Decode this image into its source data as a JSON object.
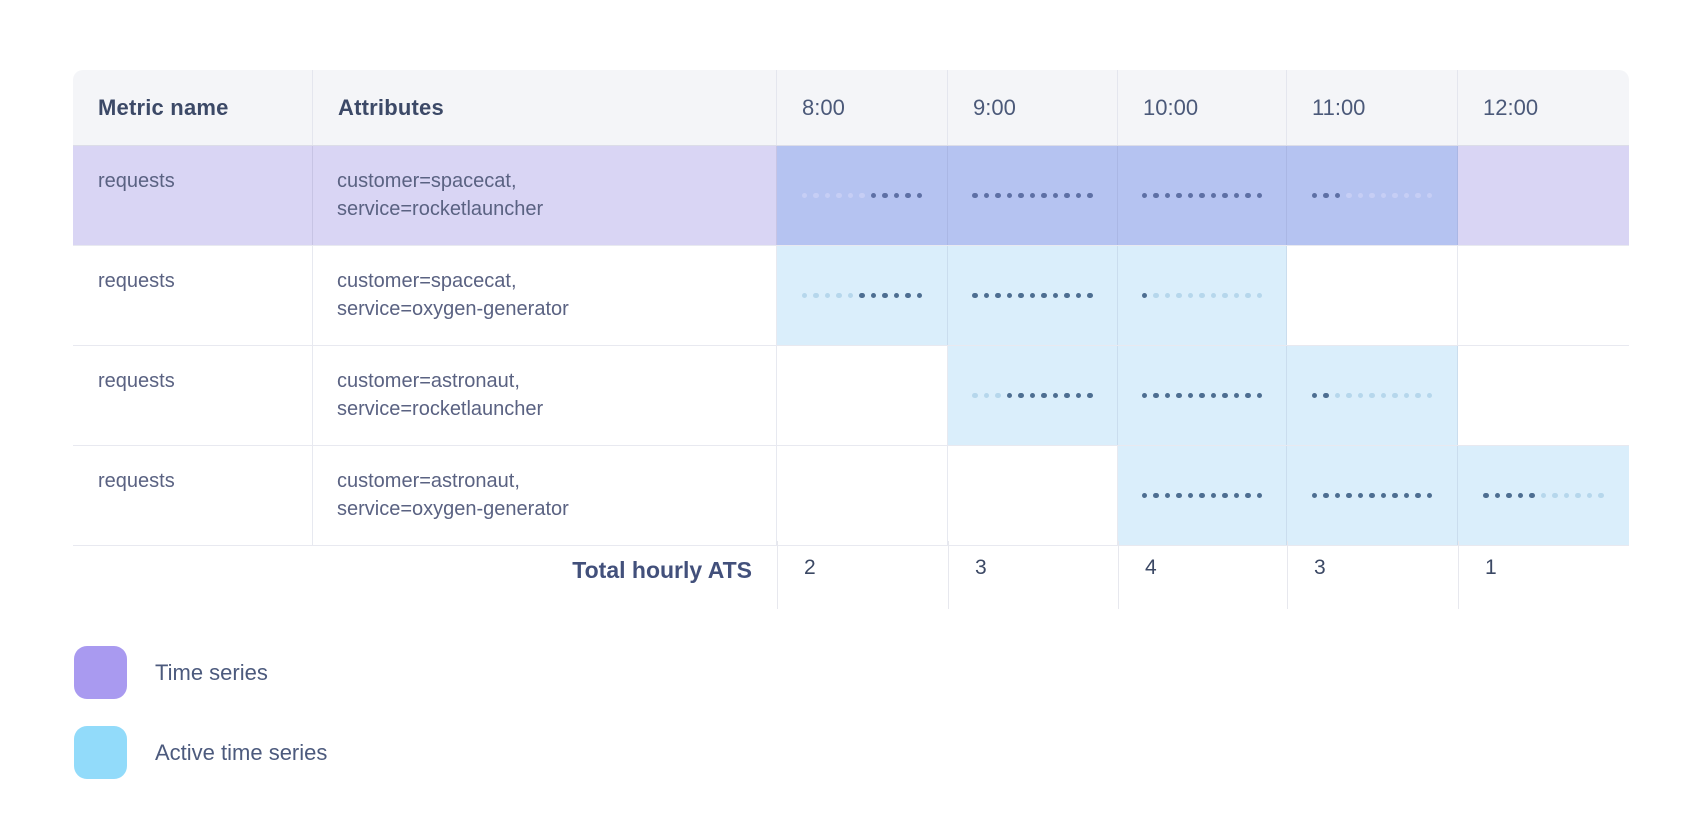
{
  "table": {
    "columns": [
      "Metric name",
      "Attributes",
      "8:00",
      "9:00",
      "10:00",
      "11:00",
      "12:00"
    ],
    "hours": [
      "8:00",
      "9:00",
      "10:00",
      "11:00",
      "12:00"
    ],
    "rows": [
      {
        "metric": "requests",
        "attributes": [
          "customer=spacecat,",
          "service=rocketlauncher"
        ],
        "highlighted": true,
        "cells": [
          {
            "hour": "8:00",
            "active": true,
            "dots": [
              0,
              0,
              0,
              0,
              0,
              0,
              1,
              1,
              1,
              1,
              1
            ]
          },
          {
            "hour": "9:00",
            "active": true,
            "dots": [
              1,
              1,
              1,
              1,
              1,
              1,
              1,
              1,
              1,
              1,
              1
            ]
          },
          {
            "hour": "10:00",
            "active": true,
            "dots": [
              1,
              1,
              1,
              1,
              1,
              1,
              1,
              1,
              1,
              1,
              1
            ]
          },
          {
            "hour": "11:00",
            "active": true,
            "dots": [
              1,
              1,
              1,
              0,
              0,
              0,
              0,
              0,
              0,
              0,
              0
            ]
          },
          {
            "hour": "12:00",
            "active": false,
            "dots": null
          }
        ]
      },
      {
        "metric": "requests",
        "attributes": [
          "customer=spacecat,",
          "service=oxygen-generator"
        ],
        "highlighted": false,
        "cells": [
          {
            "hour": "8:00",
            "active": true,
            "dots": [
              0,
              0,
              0,
              0,
              0,
              1,
              1,
              1,
              1,
              1,
              1
            ]
          },
          {
            "hour": "9:00",
            "active": true,
            "dots": [
              1,
              1,
              1,
              1,
              1,
              1,
              1,
              1,
              1,
              1,
              1
            ]
          },
          {
            "hour": "10:00",
            "active": true,
            "dots": [
              1,
              0,
              0,
              0,
              0,
              0,
              0,
              0,
              0,
              0,
              0
            ]
          },
          {
            "hour": "11:00",
            "active": false,
            "dots": null
          },
          {
            "hour": "12:00",
            "active": false,
            "dots": null
          }
        ]
      },
      {
        "metric": "requests",
        "attributes": [
          "customer=astronaut,",
          "service=rocketlauncher"
        ],
        "highlighted": false,
        "cells": [
          {
            "hour": "8:00",
            "active": false,
            "dots": null
          },
          {
            "hour": "9:00",
            "active": true,
            "dots": [
              0,
              0,
              0,
              1,
              1,
              1,
              1,
              1,
              1,
              1,
              1
            ]
          },
          {
            "hour": "10:00",
            "active": true,
            "dots": [
              1,
              1,
              1,
              1,
              1,
              1,
              1,
              1,
              1,
              1,
              1
            ]
          },
          {
            "hour": "11:00",
            "active": true,
            "dots": [
              1,
              1,
              0,
              0,
              0,
              0,
              0,
              0,
              0,
              0,
              0
            ]
          },
          {
            "hour": "12:00",
            "active": false,
            "dots": null
          }
        ]
      },
      {
        "metric": "requests",
        "attributes": [
          "customer=astronaut,",
          "service=oxygen-generator"
        ],
        "highlighted": false,
        "cells": [
          {
            "hour": "8:00",
            "active": false,
            "dots": null
          },
          {
            "hour": "9:00",
            "active": false,
            "dots": null
          },
          {
            "hour": "10:00",
            "active": true,
            "dots": [
              1,
              1,
              1,
              1,
              1,
              1,
              1,
              1,
              1,
              1,
              1
            ]
          },
          {
            "hour": "11:00",
            "active": true,
            "dots": [
              1,
              1,
              1,
              1,
              1,
              1,
              1,
              1,
              1,
              1,
              1
            ]
          },
          {
            "hour": "12:00",
            "active": true,
            "dots": [
              1,
              1,
              1,
              1,
              1,
              0,
              0,
              0,
              0,
              0,
              0
            ]
          }
        ]
      }
    ],
    "total": {
      "label": "Total hourly ATS",
      "values": [
        2,
        3,
        4,
        3,
        1
      ]
    }
  },
  "legend": {
    "items": [
      {
        "name": "time-series",
        "label": "Time series",
        "color": "#a99af0"
      },
      {
        "name": "active-time-series",
        "label": "Active time series",
        "color": "#92dbfa"
      }
    ]
  },
  "colors": {
    "header_bg": "#f4f5f8",
    "row_time_series_bg": "#d9d5f4",
    "cell_active_on_time_series_bg": "#b5c3f1",
    "cell_active_bg": "#daeefb",
    "dot_on_time_series": "#5e70a5",
    "dot_off_time_series": "#c6cef5",
    "dot_on_active": "#4d6e91",
    "dot_off_active": "#b6d7ec"
  },
  "chart_data": {
    "type": "table",
    "title": "",
    "hours": [
      "8:00",
      "9:00",
      "10:00",
      "11:00",
      "12:00"
    ],
    "active_series_per_hour": [
      2,
      3,
      4,
      3,
      1
    ],
    "series_active_hours": [
      {
        "metric": "requests",
        "attributes": "customer=spacecat, service=rocketlauncher",
        "active_hours": [
          "8:00",
          "9:00",
          "10:00",
          "11:00"
        ]
      },
      {
        "metric": "requests",
        "attributes": "customer=spacecat, service=oxygen-generator",
        "active_hours": [
          "8:00",
          "9:00",
          "10:00"
        ]
      },
      {
        "metric": "requests",
        "attributes": "customer=astronaut, service=rocketlauncher",
        "active_hours": [
          "9:00",
          "10:00",
          "11:00"
        ]
      },
      {
        "metric": "requests",
        "attributes": "customer=astronaut, service=oxygen-generator",
        "active_hours": [
          "10:00",
          "11:00",
          "12:00"
        ]
      }
    ]
  }
}
